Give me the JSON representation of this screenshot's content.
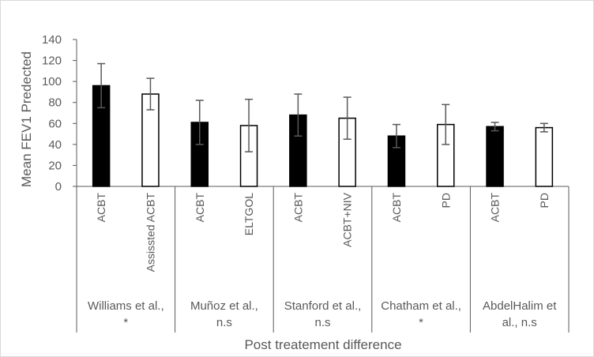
{
  "chart_data": {
    "type": "bar",
    "title": "",
    "xlabel": "Post treatement difference",
    "ylabel": "Mean FEV1 Predected",
    "ylim": [
      0,
      140
    ],
    "ytick_step": 20,
    "yticks": [
      "0",
      "20",
      "40",
      "60",
      "80",
      "100",
      "120",
      "140"
    ],
    "grid": false,
    "legend": "none",
    "colors": {
      "filled": "#000000",
      "outline": "#000000",
      "open": "#ffffff",
      "error_bar": "#595959",
      "axis": "#595959",
      "border": "#d9d9d9"
    },
    "groups": [
      {
        "label": "Williams et al., *",
        "label_lines": [
          "Williams et al.,",
          "*"
        ],
        "bars": [
          {
            "category": "ACBT",
            "value": 96,
            "error": 21,
            "fill": "filled"
          },
          {
            "category": "Assissted ACBT",
            "value": 88,
            "error": 15,
            "fill": "open"
          }
        ]
      },
      {
        "label": "Muñoz et al., n.s",
        "label_lines": [
          "Muñoz et al.,",
          "n.s"
        ],
        "bars": [
          {
            "category": "ACBT",
            "value": 61,
            "error": 21,
            "fill": "filled"
          },
          {
            "category": "ELTGOL",
            "value": 58,
            "error": 25,
            "fill": "open"
          }
        ]
      },
      {
        "label": "Stanford et al., n.s",
        "label_lines": [
          "Stanford et al.,",
          "n.s"
        ],
        "bars": [
          {
            "category": "ACBT",
            "value": 68,
            "error": 20,
            "fill": "filled"
          },
          {
            "category": "ACBT+NIV",
            "value": 65,
            "error": 20,
            "fill": "open"
          }
        ]
      },
      {
        "label": "Chatham et al., *",
        "label_lines": [
          "Chatham et al.,",
          "*"
        ],
        "bars": [
          {
            "category": "ACBT",
            "value": 48,
            "error": 11,
            "fill": "filled"
          },
          {
            "category": "PD",
            "value": 59,
            "error": 19,
            "fill": "open"
          }
        ]
      },
      {
        "label": "AbdelHalim et al., n.s",
        "label_lines": [
          "AbdelHalim et",
          "al., n.s"
        ],
        "bars": [
          {
            "category": "ACBT",
            "value": 57,
            "error": 4,
            "fill": "filled"
          },
          {
            "category": "PD",
            "value": 56,
            "error": 4,
            "fill": "open"
          }
        ]
      }
    ]
  }
}
